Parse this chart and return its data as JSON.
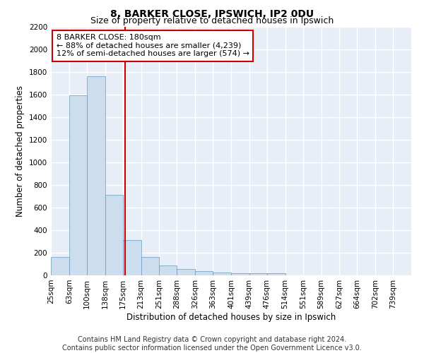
{
  "title": "8, BARKER CLOSE, IPSWICH, IP2 0DU",
  "subtitle": "Size of property relative to detached houses in Ipswich",
  "xlabel": "Distribution of detached houses by size in Ipswich",
  "ylabel": "Number of detached properties",
  "footer_line1": "Contains HM Land Registry data © Crown copyright and database right 2024.",
  "footer_line2": "Contains public sector information licensed under the Open Government Licence v3.0.",
  "bar_edges": [
    25,
    63,
    100,
    138,
    175,
    213,
    251,
    288,
    326,
    363,
    401,
    439,
    476,
    514,
    551,
    589,
    627,
    664,
    702,
    739,
    777
  ],
  "bar_heights": [
    160,
    1590,
    1760,
    710,
    315,
    160,
    90,
    55,
    35,
    25,
    20,
    20,
    20,
    0,
    0,
    0,
    0,
    0,
    0,
    0
  ],
  "bar_color": "#ccdded",
  "bar_edge_color": "#6699bb",
  "property_size": 180,
  "vline_color": "#cc0000",
  "annotation_line1": "8 BARKER CLOSE: 180sqm",
  "annotation_line2": "← 88% of detached houses are smaller (4,239)",
  "annotation_line3": "12% of semi-detached houses are larger (574) →",
  "annotation_box_color": "#ffffff",
  "annotation_box_edge_color": "#cc0000",
  "ylim": [
    0,
    2200
  ],
  "yticks": [
    0,
    200,
    400,
    600,
    800,
    1000,
    1200,
    1400,
    1600,
    1800,
    2000,
    2200
  ],
  "fig_bg_color": "#ffffff",
  "plot_bg_color": "#e8eef8",
  "grid_color": "#ffffff",
  "title_fontsize": 10,
  "subtitle_fontsize": 9,
  "label_fontsize": 8.5,
  "tick_fontsize": 7.5,
  "annotation_fontsize": 8,
  "footer_fontsize": 7
}
